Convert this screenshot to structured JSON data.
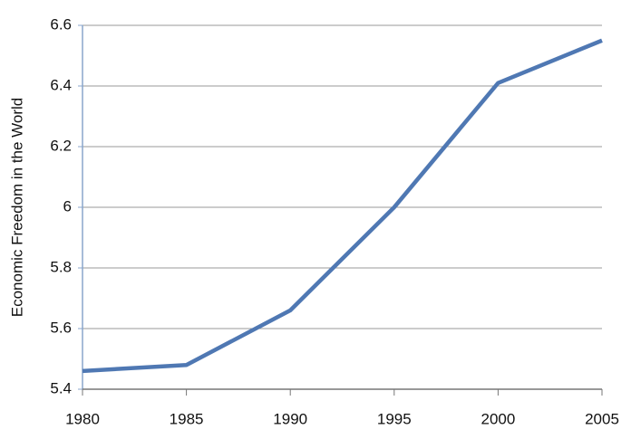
{
  "chart_data": {
    "type": "line",
    "y_label": "Economic Freedom in the World",
    "x": [
      1980,
      1985,
      1990,
      1995,
      2000,
      2005
    ],
    "series": [
      {
        "name": "Economic Freedom",
        "color": "#4f78b3",
        "values": [
          5.46,
          5.48,
          5.66,
          6.0,
          6.41,
          6.55
        ]
      }
    ],
    "xlim": [
      1980,
      2005
    ],
    "xticks": [
      1980,
      1985,
      1990,
      1995,
      2000,
      2005
    ],
    "ylim": [
      5.4,
      6.6
    ],
    "yticks": [
      5.4,
      5.6,
      5.8,
      6,
      6.2,
      6.4,
      6.6
    ],
    "grid": true
  }
}
